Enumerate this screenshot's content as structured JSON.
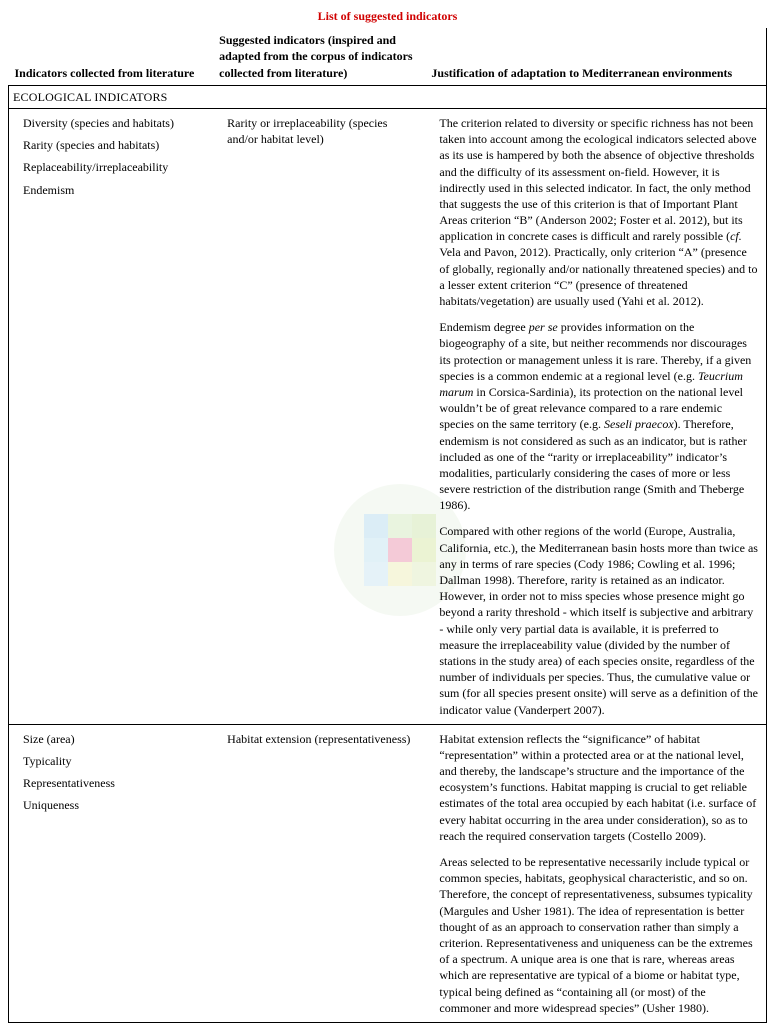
{
  "title": "List of suggested indicators",
  "headers": {
    "col1": "Indicators collected from literature",
    "col2": "Suggested indicators (inspired and adapted from the corpus of indicators collected from literature)",
    "col3": "Justification of adaptation to Mediterranean environments"
  },
  "section": "ECOLOGICAL INDICATORS",
  "rows": [
    {
      "literature": [
        "Diversity (species and habitats)",
        "Rarity (species and habitats)",
        "Replaceability/irreplaceability",
        "Endemism"
      ],
      "suggested": "Rarity or irreplaceability (species and/or habitat level)",
      "justification": [
        "The criterion related to diversity or specific richness has not been taken into account among the ecological indicators selected above as its use is hampered by both the absence of objective thresholds and the difficulty of its assessment on-field. However, it is indirectly used in this selected indicator. In fact, the only method that suggests the use of this criterion is that of Important Plant Areas criterion “B” (Anderson 2002; Foster et al. 2012), but its application in concrete cases is difficult and rarely possible (<i>cf.</i> Vela and Pavon, 2012). Practically, only criterion “A” (presence of globally, regionally and/or nationally threatened species) and to a lesser extent criterion “C” (presence of threatened habitats/vegetation) are usually used (Yahi et al. 2012).",
        "Endemism degree <i>per se</i> provides information on the biogeography of a site, but neither recommends nor discourages its protection or management unless it is rare. Thereby, if a given species is a common endemic at a regional level (e.g. <i>Teucrium marum</i> in Corsica-Sardinia), its protection on the national level wouldn’t be of great relevance compared to a rare endemic species on the same territory (e.g. <i>Seseli praecox</i>). Therefore, endemism is not considered as such as an indicator, but is rather included as one of the “rarity or irreplaceability” indicator’s modalities, particularly considering the cases of more or less severe restriction of the distribution range (Smith and Theberge 1986).",
        "Compared with other regions of the world (Europe, Australia, California, etc.), the Mediterranean basin hosts more than twice as any in terms of rare species (Cody 1986; Cowling et al. 1996; Dallman 1998). Therefore, rarity is retained as an indicator. However, in order not to miss species whose presence might go beyond a rarity threshold - which itself is subjective and arbitrary - while only very partial data is available, it is preferred to measure the irreplaceability value (divided by the number of stations in the study area) of each species onsite, regardless of the number of individuals per species. Thus, the cumulative value or sum (for all species present onsite) will serve as a definition of the indicator value (Vanderpert 2007)."
      ]
    },
    {
      "literature": [
        "Size (area)",
        "Typicality",
        "Representativeness",
        "Uniqueness"
      ],
      "suggested": "Habitat extension (representativeness)",
      "justification": [
        "Habitat extension reflects the “significance” of habitat “representation” within a protected area or at the national level, and thereby, the landscape’s structure and the importance of the ecosystem’s functions. Habitat mapping is crucial to get reliable estimates of the total area occupied by each habitat (i.e. surface of every habitat occurring in the area under consideration), so as to reach the required conservation targets (Costello 2009).",
        "Areas selected to be representative necessarily include typical or common species, habitats, geophysical characteristic, and so on. Therefore, the concept of representativeness, subsumes typicality (Margules and Usher 1981). The idea of representation is better thought of as an approach to conservation rather than simply a criterion. Representativeness and uniqueness can be the extremes of a spectrum. A unique area is one that is rare, whereas areas which are representative are typical of a biome or habitat type, typical being defined as “containing all (or most) of the commoner and more widespread species” (Usher 1980)."
      ]
    }
  ],
  "watermark": {
    "colors": {
      "outer": "#e8f2e4",
      "blue": "#bfe0f0",
      "green": "#d4e8b8",
      "yellow": "#f0efc0",
      "pink": "#f2c5d2",
      "center": "#ec9fb7"
    }
  }
}
